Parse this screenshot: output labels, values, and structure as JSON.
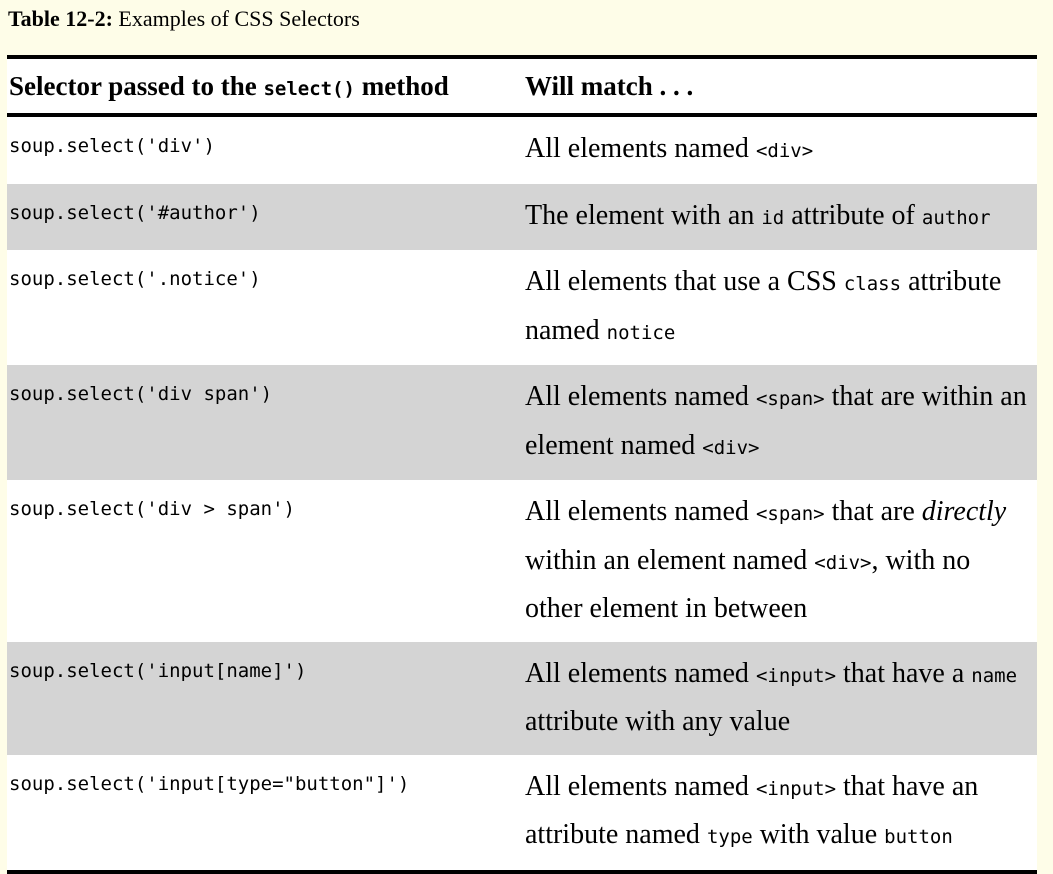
{
  "caption": {
    "label": "Table 12-2:",
    "title": "Examples of CSS Selectors"
  },
  "header": {
    "col1_before": "Selector passed to the ",
    "col1_code": "select()",
    "col1_after": " method",
    "col2": "Will match . . ."
  },
  "rows": [
    {
      "selector": "soup.select('div')",
      "parts": [
        [
          "t",
          "All elements named "
        ],
        [
          "c",
          "<div>"
        ]
      ]
    },
    {
      "selector": "soup.select('#author')",
      "parts": [
        [
          "t",
          "The element with an "
        ],
        [
          "c",
          "id"
        ],
        [
          "t",
          " attribute of "
        ],
        [
          "c",
          "author"
        ]
      ]
    },
    {
      "selector": "soup.select('.notice')",
      "parts": [
        [
          "t",
          "All elements that use a CSS "
        ],
        [
          "c",
          "class"
        ],
        [
          "t",
          " attribute named "
        ],
        [
          "c",
          "notice"
        ]
      ]
    },
    {
      "selector": "soup.select('div span')",
      "parts": [
        [
          "t",
          "All elements named "
        ],
        [
          "c",
          "<span>"
        ],
        [
          "t",
          " that are within an element named "
        ],
        [
          "c",
          "<div>"
        ]
      ]
    },
    {
      "selector": "soup.select('div > span')",
      "parts": [
        [
          "t",
          "All elements named "
        ],
        [
          "c",
          "<span>"
        ],
        [
          "t",
          " that are "
        ],
        [
          "i",
          "directly"
        ],
        [
          "t",
          " within an element named "
        ],
        [
          "c",
          "<div>"
        ],
        [
          "t",
          ", with no other element in between"
        ]
      ]
    },
    {
      "selector": "soup.select('input[name]')",
      "parts": [
        [
          "t",
          "All elements named "
        ],
        [
          "c",
          "<input>"
        ],
        [
          "t",
          " that have a "
        ],
        [
          "c",
          "name"
        ],
        [
          "t",
          " attribute with any value"
        ]
      ]
    },
    {
      "selector": "soup.select('input[type=\"button\"]')",
      "parts": [
        [
          "t",
          "All elements named "
        ],
        [
          "c",
          "<input>"
        ],
        [
          "t",
          " that have an attribute named "
        ],
        [
          "c",
          "type"
        ],
        [
          "t",
          " with value "
        ],
        [
          "c",
          "button"
        ]
      ]
    }
  ]
}
